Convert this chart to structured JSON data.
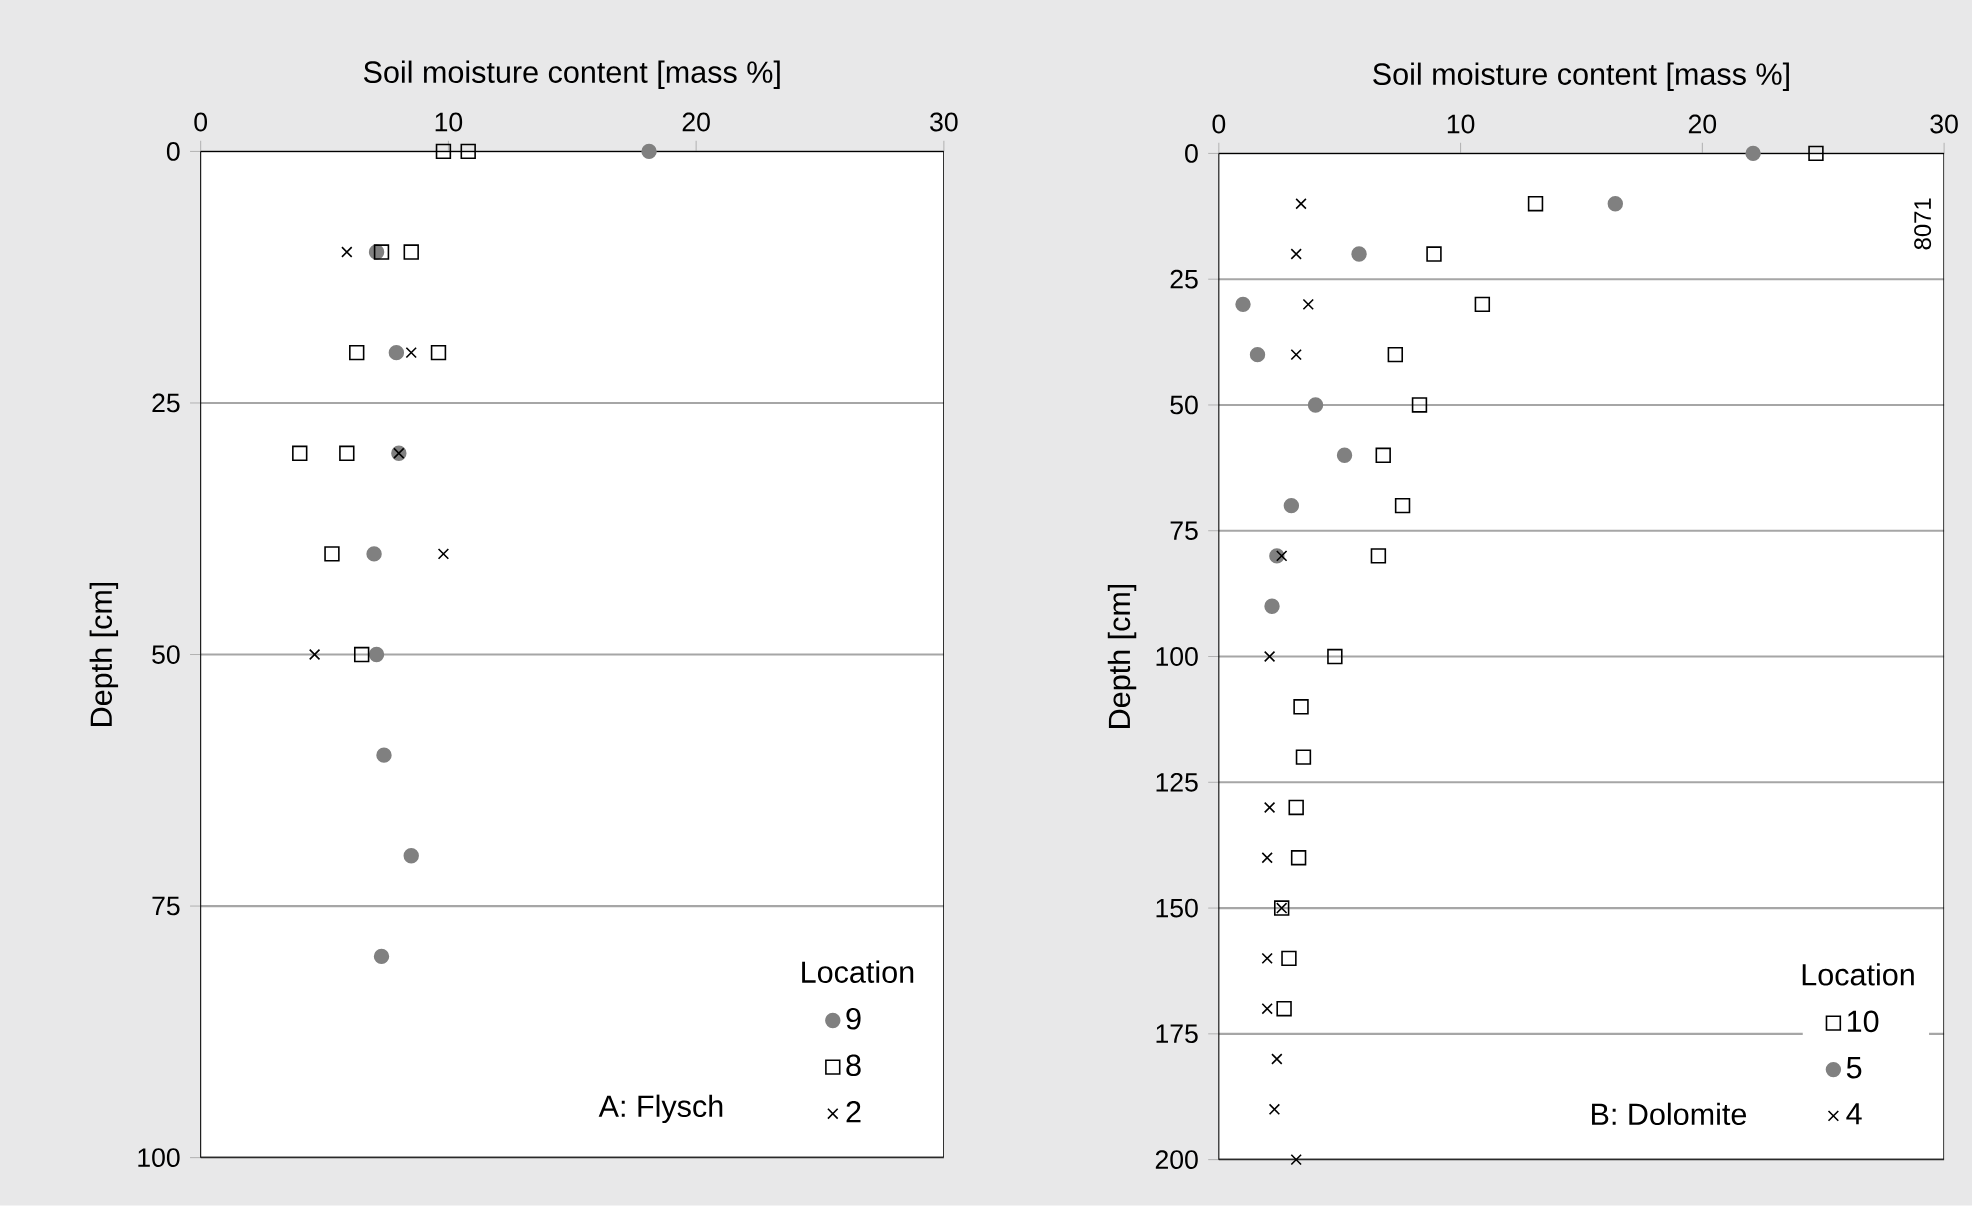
{
  "chart_data": [
    {
      "type": "scatter",
      "xlabel": "Soil moisture content [mass %]",
      "ylabel": "Depth [cm]",
      "legend_title": "Location",
      "legend": "bottom right",
      "grid": "y",
      "xlim": [
        0,
        30
      ],
      "xticks": [
        0,
        10,
        20,
        30
      ],
      "ylim": [
        100,
        0
      ],
      "yticks": [
        0,
        25,
        50,
        75,
        100
      ],
      "annotations": [
        "A: Flysch"
      ],
      "series": [
        {
          "name": "9",
          "color": "#808080",
          "marker": "circle",
          "x": [
            18.1,
            7.1,
            7.9,
            8.0,
            7.0,
            7.1,
            7.4,
            8.5,
            7.3
          ],
          "values": [
            0,
            10,
            20,
            30,
            40,
            50,
            60,
            70,
            80
          ]
        },
        {
          "name": "8",
          "color": "#000000",
          "marker": "square",
          "x": [
            9.8,
            10.8,
            7.3,
            8.5,
            6.3,
            9.6,
            4.0,
            5.9,
            5.3,
            6.5
          ],
          "values": [
            0,
            0,
            10,
            10,
            20,
            20,
            30,
            30,
            40,
            50
          ]
        },
        {
          "name": "2",
          "color": "#000000",
          "marker": "cross",
          "x": [
            5.9,
            8.5,
            8.0,
            9.8,
            4.6
          ],
          "values": [
            10,
            20,
            30,
            40,
            50
          ]
        }
      ]
    },
    {
      "type": "scatter",
      "xlabel": "Soil moisture content [mass %]",
      "ylabel": "Depth [cm]",
      "legend_title": "Location",
      "legend": "bottom right",
      "grid": "y",
      "xlim": [
        0,
        30
      ],
      "xticks": [
        0,
        10,
        20,
        30
      ],
      "ylim": [
        200,
        0
      ],
      "yticks": [
        0,
        25,
        50,
        75,
        100,
        125,
        150,
        175,
        200
      ],
      "annotations": [
        "B: Dolomite",
        "8071"
      ],
      "series": [
        {
          "name": "10",
          "color": "#000000",
          "marker": "square",
          "x": [
            24.7,
            13.1,
            8.9,
            10.9,
            7.3,
            8.3,
            6.8,
            7.6,
            6.6,
            4.8,
            3.4,
            3.5,
            3.2,
            3.3,
            2.6,
            2.9,
            2.7
          ],
          "values": [
            0,
            10,
            20,
            30,
            40,
            50,
            60,
            70,
            80,
            100,
            110,
            120,
            130,
            140,
            150,
            160,
            170
          ]
        },
        {
          "name": "5",
          "color": "#808080",
          "marker": "circle",
          "x": [
            22.1,
            16.4,
            5.8,
            1.0,
            1.6,
            4.0,
            5.2,
            3.0,
            2.4,
            2.2
          ],
          "values": [
            0,
            10,
            20,
            30,
            40,
            50,
            60,
            70,
            80,
            90
          ]
        },
        {
          "name": "4",
          "color": "#000000",
          "marker": "cross",
          "x": [
            3.4,
            3.2,
            3.7,
            3.2,
            2.6,
            2.1,
            2.1,
            2.0,
            2.6,
            2.0,
            2.0,
            2.4,
            2.3,
            3.2
          ],
          "values": [
            10,
            20,
            30,
            40,
            80,
            100,
            130,
            140,
            150,
            160,
            170,
            180,
            190,
            200
          ]
        }
      ]
    }
  ]
}
